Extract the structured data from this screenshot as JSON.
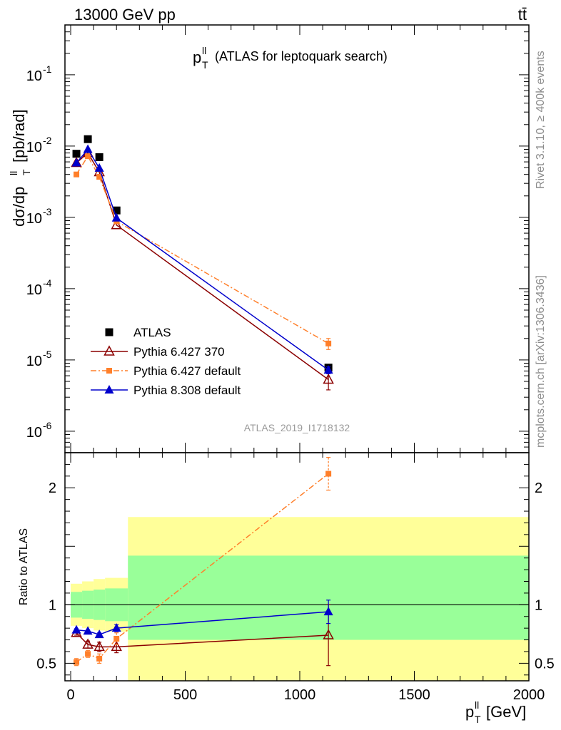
{
  "header": {
    "beam_label": "13000 GeV pp",
    "process_label": "tt̄"
  },
  "side_labels": {
    "rivet": "Rivet 3.1.10, ≥ 400k events",
    "source": "mcplots.cern.ch [arXiv:1306.3436]"
  },
  "chart_data": [
    {
      "type": "line",
      "panel": "main",
      "title": "(ATLAS for leptoquark search)",
      "title_variable": "p",
      "title_sup": "ll",
      "title_sub": "T",
      "analysis_id": "ATLAS_2019_I1718132",
      "ylabel": "dσ/dp",
      "ylabel_sup": "ll",
      "ylabel_sub": "T",
      "ylabel_unit": "[pb/rad]",
      "yscale": "log",
      "ylim": [
        5e-07,
        0.5
      ],
      "xlim": [
        -25,
        2000
      ],
      "ytick_values": [
        1e-06,
        1e-05,
        0.0001,
        0.001,
        0.01,
        0.1
      ],
      "ytick_exponents": [
        "-6",
        "-5",
        "-4",
        "-3",
        "-2",
        "-1"
      ],
      "ytick_base": "10",
      "x": [
        25,
        75,
        125,
        200,
        1125
      ],
      "series": [
        {
          "name": "ATLAS",
          "color": "#000000",
          "marker": "square",
          "line": "none",
          "values": [
            0.0078,
            0.0125,
            0.007,
            0.00125,
            7.8e-06
          ],
          "errors": [
            0,
            0,
            0,
            0,
            0
          ]
        },
        {
          "name": "Pythia 6.427 370",
          "color": "#8b0000",
          "marker": "open-triangle",
          "line": "solid",
          "values": [
            0.0058,
            0.008,
            0.0043,
            0.00078,
            5.3e-06
          ],
          "errors": [
            0,
            0,
            0,
            0,
            1.5e-06
          ]
        },
        {
          "name": "Pythia 6.427 default",
          "color": "#ff7f2a",
          "marker": "square-small",
          "line": "dashdot",
          "values": [
            0.004,
            0.0072,
            0.0037,
            0.00088,
            1.7e-05
          ],
          "errors": [
            0,
            0,
            0,
            0,
            3e-06
          ]
        },
        {
          "name": "Pythia 8.308 default",
          "color": "#0000cc",
          "marker": "triangle",
          "line": "solid",
          "values": [
            0.0058,
            0.009,
            0.0049,
            0.00098,
            7.2e-06
          ],
          "errors": [
            0,
            0,
            0,
            0,
            8e-07
          ]
        }
      ]
    },
    {
      "type": "line",
      "panel": "ratio",
      "ylabel": "Ratio to ATLAS",
      "xlabel": "p",
      "xlabel_sup": "ll",
      "xlabel_sub": "T",
      "xlabel_unit": "[GeV]",
      "ylim": [
        0.35,
        2.3
      ],
      "xlim": [
        -25,
        2000
      ],
      "xticks": [
        0,
        500,
        1000,
        1500,
        2000
      ],
      "yticks": [
        0.5,
        1,
        2
      ],
      "x": [
        25,
        75,
        125,
        200,
        1125
      ],
      "bands": [
        {
          "x0": 0,
          "x1": 50,
          "yellow": [
            0.82,
            1.18
          ],
          "green": [
            0.89,
            1.11
          ]
        },
        {
          "x0": 50,
          "x1": 100,
          "yellow": [
            0.8,
            1.2
          ],
          "green": [
            0.88,
            1.12
          ]
        },
        {
          "x0": 100,
          "x1": 150,
          "yellow": [
            0.78,
            1.22
          ],
          "green": [
            0.87,
            1.13
          ]
        },
        {
          "x0": 150,
          "x1": 250,
          "yellow": [
            0.77,
            1.23
          ],
          "green": [
            0.86,
            1.14
          ]
        },
        {
          "x0": 250,
          "x1": 2000,
          "yellow": [
            0.35,
            1.75
          ],
          "green": [
            0.7,
            1.42
          ]
        }
      ],
      "series": [
        {
          "name": "Pythia 6.427 370",
          "color": "#8b0000",
          "marker": "open-triangle",
          "line": "solid",
          "values": [
            0.76,
            0.66,
            0.64,
            0.64,
            0.74
          ],
          "errors": [
            0.02,
            0.03,
            0.04,
            0.05,
            0.26
          ]
        },
        {
          "name": "Pythia 6.427 default",
          "color": "#ff7f2a",
          "marker": "square-small",
          "line": "dashdot",
          "values": [
            0.51,
            0.58,
            0.54,
            0.71,
            2.12
          ],
          "errors": [
            0.03,
            0.03,
            0.04,
            0.05,
            0.14
          ]
        },
        {
          "name": "Pythia 8.308 default",
          "color": "#0000cc",
          "marker": "triangle",
          "line": "solid",
          "values": [
            0.785,
            0.775,
            0.745,
            0.8,
            0.94
          ],
          "errors": [
            0.01,
            0.01,
            0.015,
            0.03,
            0.1
          ]
        }
      ]
    }
  ]
}
